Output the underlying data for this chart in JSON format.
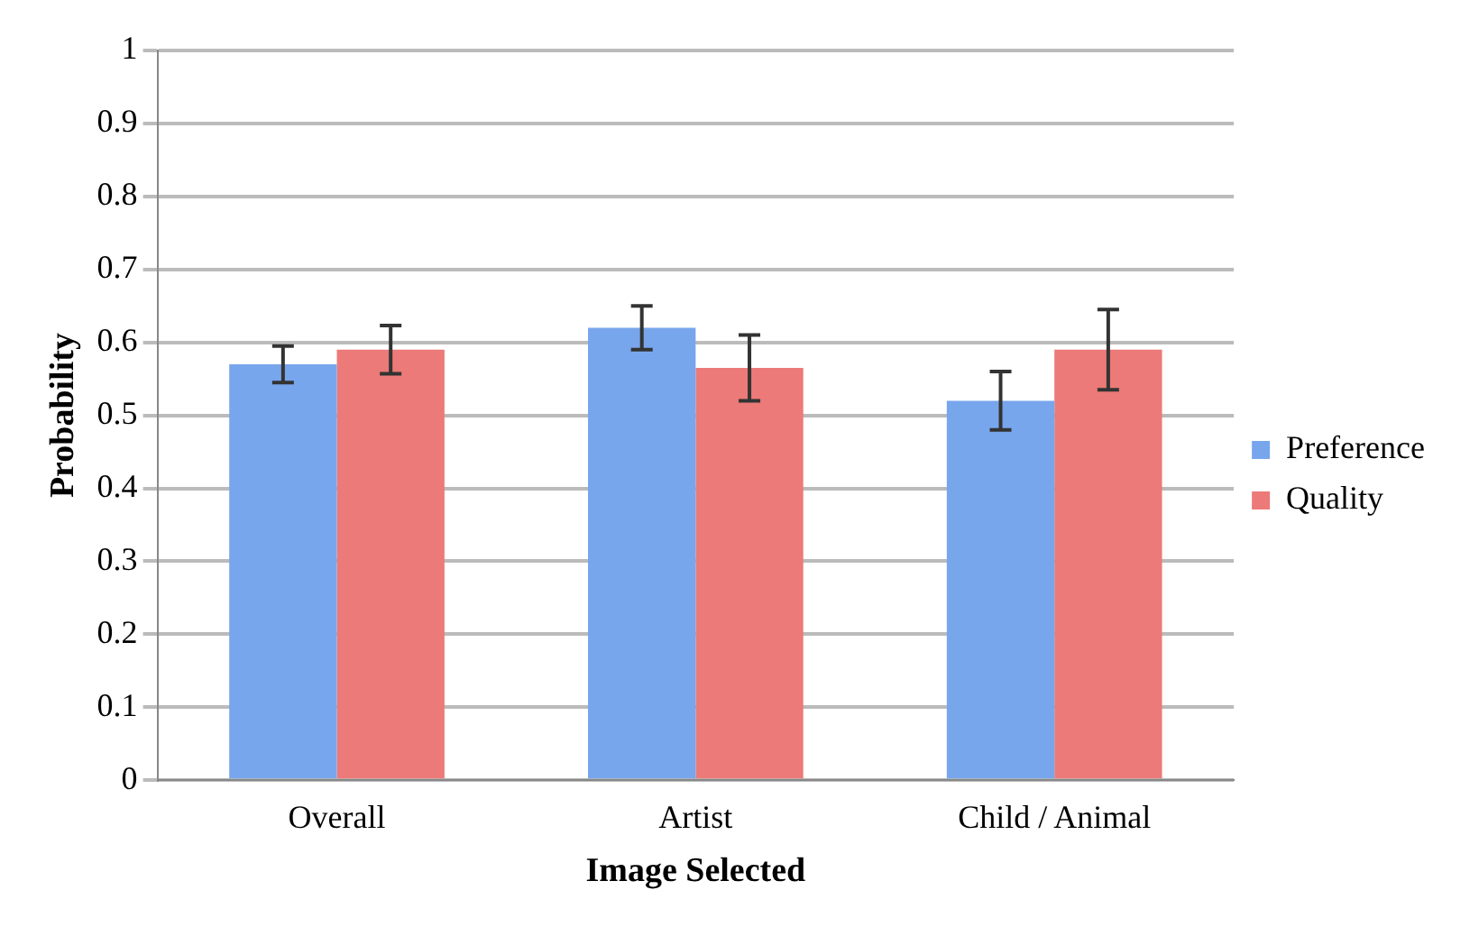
{
  "chart_data": {
    "type": "bar",
    "xlabel": "Image Selected",
    "ylabel": "Probability",
    "categories": [
      "Overall",
      "Artist",
      "Child / Animal"
    ],
    "series": [
      {
        "name": "Preference",
        "color": "#78a6ec",
        "values": [
          0.57,
          0.62,
          0.52
        ],
        "errors": [
          0.025,
          0.03,
          0.04
        ]
      },
      {
        "name": "Quality",
        "color": "#ec7a78",
        "values": [
          0.59,
          0.565,
          0.59
        ],
        "errors": [
          0.033,
          0.045,
          0.055
        ]
      }
    ],
    "ylim": [
      0,
      1
    ],
    "yticks": [
      0,
      0.1,
      0.2,
      0.3,
      0.4,
      0.5,
      0.6,
      0.7,
      0.8,
      0.9,
      1
    ],
    "grid": "y",
    "legend": "right"
  }
}
